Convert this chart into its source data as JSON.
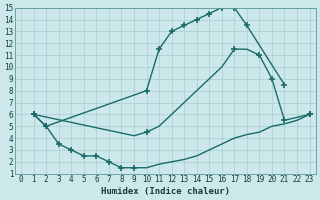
{
  "background_color": "#cce8ea",
  "grid_color": "#aacdd0",
  "line_color": "#1a6b6b",
  "xlabel": "Humidex (Indice chaleur)",
  "xlim": [
    -0.5,
    23.5
  ],
  "ylim": [
    1,
    15
  ],
  "xticks": [
    0,
    1,
    2,
    3,
    4,
    5,
    6,
    7,
    8,
    9,
    10,
    11,
    12,
    13,
    14,
    15,
    16,
    17,
    18,
    19,
    20,
    21,
    22,
    23
  ],
  "yticks": [
    1,
    2,
    3,
    4,
    5,
    6,
    7,
    8,
    9,
    10,
    11,
    12,
    13,
    14,
    15
  ],
  "line1_x": [
    1,
    2,
    10,
    11,
    12,
    13,
    14,
    15,
    16,
    17,
    18,
    21
  ],
  "line1_y": [
    6,
    5,
    8,
    11.5,
    13,
    13.5,
    14,
    14.5,
    15,
    15,
    13.5,
    8.5
  ],
  "line2_x": [
    1,
    9,
    10,
    11,
    12,
    13,
    14,
    15,
    16,
    17,
    18,
    19,
    20,
    21,
    23
  ],
  "line2_y": [
    6,
    4.2,
    4.5,
    5,
    6,
    7,
    8,
    9,
    10,
    11.5,
    11.5,
    11,
    9,
    5.5,
    6
  ],
  "line3_x": [
    1,
    2,
    3,
    4,
    5,
    6,
    7,
    8,
    9,
    10,
    11,
    12,
    13,
    14,
    15,
    16,
    17,
    18,
    19,
    20,
    21,
    22,
    23
  ],
  "line3_y": [
    6,
    5,
    3.5,
    3,
    2.5,
    2.5,
    2.0,
    1.5,
    1.5,
    1.5,
    1.8,
    2,
    2.2,
    2.5,
    3,
    3.5,
    4,
    4.3,
    4.5,
    5,
    5.2,
    5.5,
    6
  ],
  "line1_marker_x": [
    1,
    2,
    10,
    11,
    12,
    13,
    14,
    15,
    16,
    17,
    18,
    21
  ],
  "line1_marker_y": [
    6,
    5,
    8,
    11.5,
    13,
    13.5,
    14,
    14.5,
    15,
    15,
    13.5,
    8.5
  ],
  "line2_marker_x": [
    1,
    10,
    17,
    19,
    20,
    21,
    23
  ],
  "line2_marker_y": [
    6,
    4.5,
    11.5,
    11,
    9,
    5.5,
    6
  ],
  "line3_marker_x": [
    1,
    2,
    3,
    4,
    5,
    6,
    7,
    8,
    9,
    23
  ],
  "line3_marker_y": [
    6,
    5,
    3.5,
    3,
    2.5,
    2.5,
    2.0,
    1.5,
    1.5,
    6
  ],
  "marker": "+",
  "markersize": 4,
  "linewidth": 1.0
}
